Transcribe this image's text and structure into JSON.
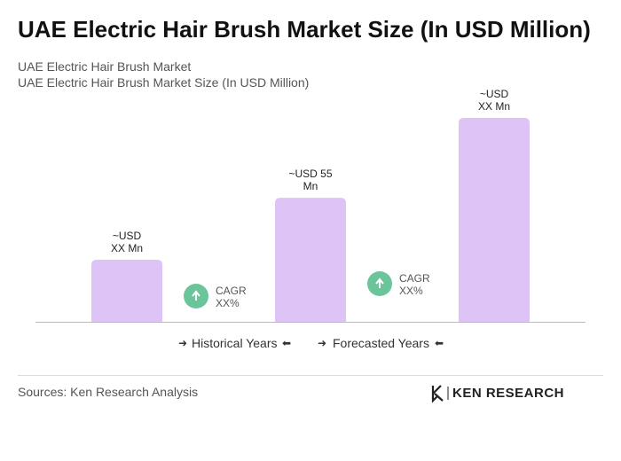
{
  "chart_data": {
    "type": "bar",
    "title": "UAE Electric Hair Brush Market Size (In USD Million)",
    "subtitle": [
      "UAE Electric Hair Brush Market",
      "UAE Electric Hair Brush Market Size (In USD Million)"
    ],
    "values": [
      27.5,
      55,
      90.4
    ],
    "value_labels": [
      "~USD XX Mn",
      "~USD 55 Mn",
      "~USD XX Mn"
    ],
    "color": "#dec3f6",
    "annotations": [
      "CAGR XX%",
      "CAGR XX%"
    ],
    "annotation_color": "#6cc59a",
    "legend": [
      "Historical Years",
      "Forecasted Years"
    ],
    "source": "Sources: Ken Research Analysis",
    "logo": "KEN RESEARCH"
  }
}
